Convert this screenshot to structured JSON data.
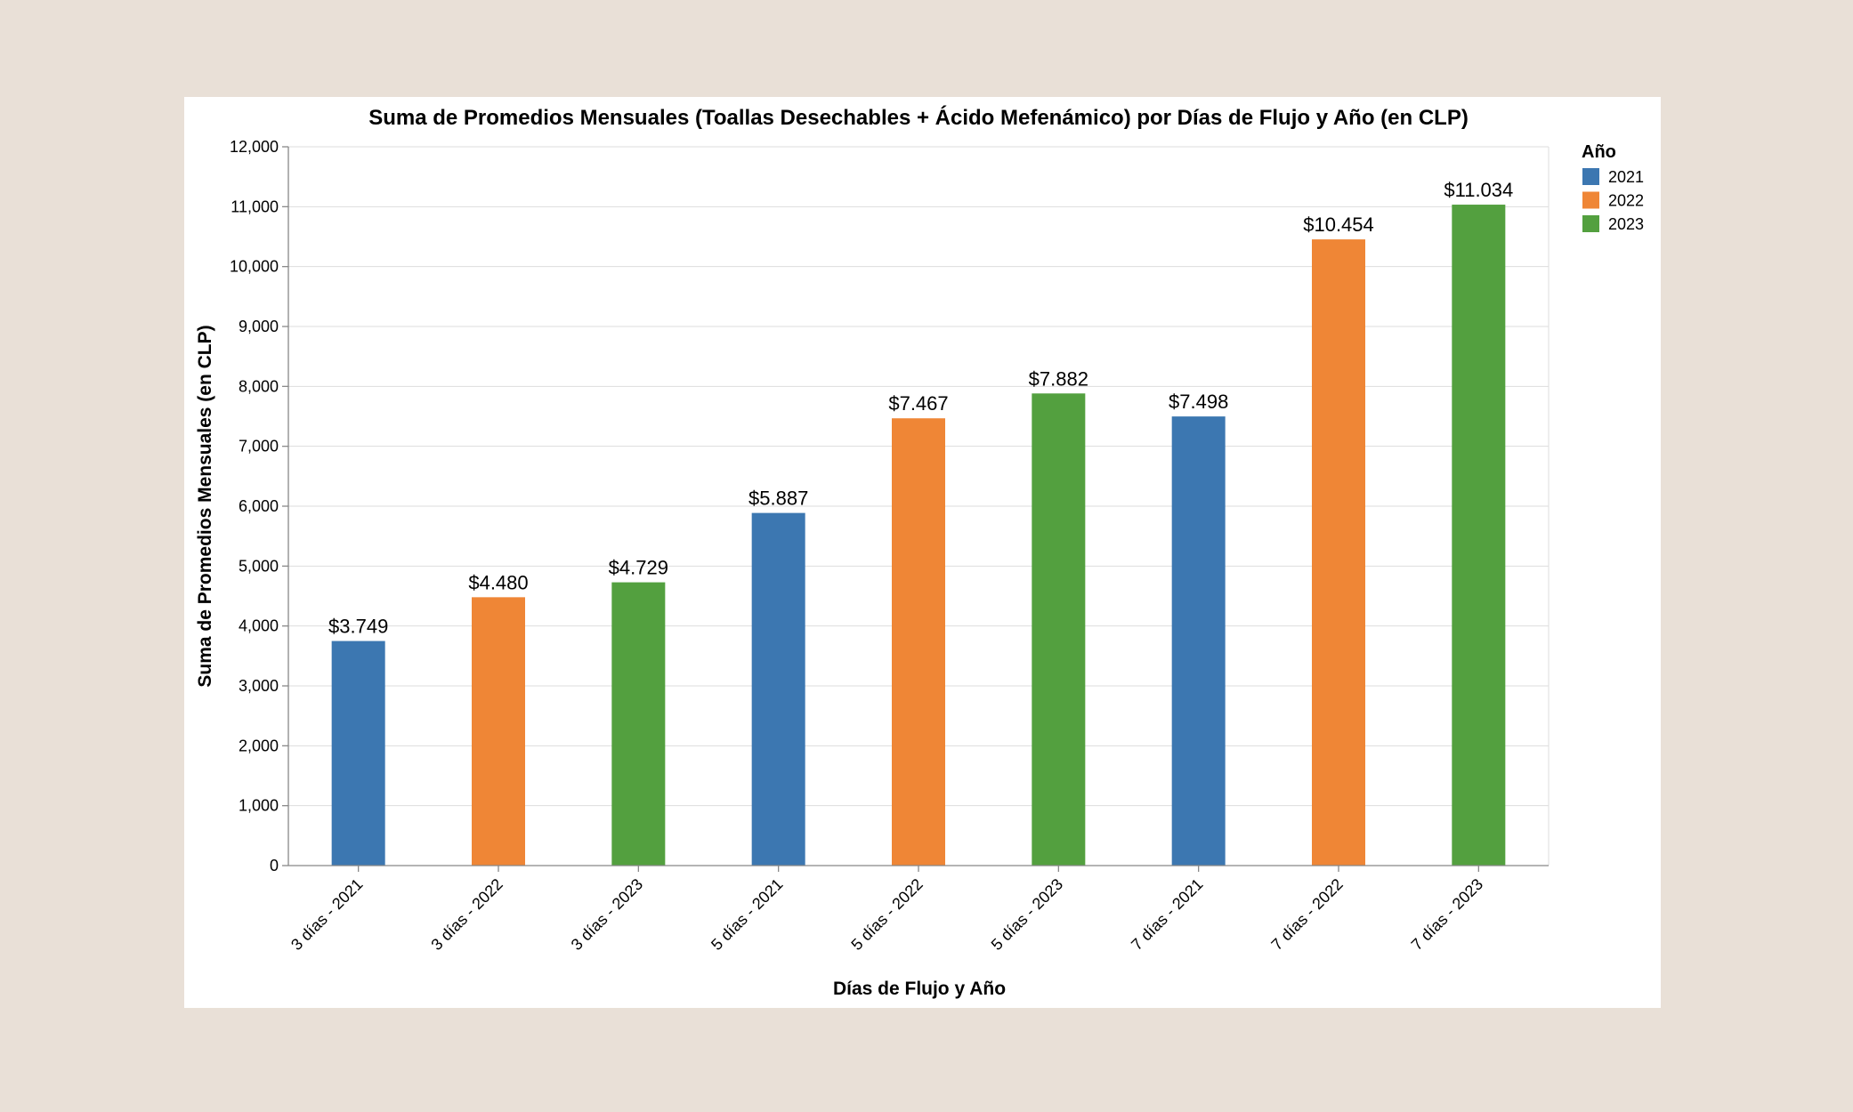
{
  "chart_data": {
    "type": "bar",
    "title": "Suma de Promedios Mensuales (Toallas Desechables + Ácido Mefenámico) por Días de Flujo y Año (en CLP)",
    "xlabel": "Días de Flujo y Año",
    "ylabel": "Suma de Promedios Mensuales (en CLP)",
    "ylim": [
      0,
      12000
    ],
    "yticks": [
      0,
      1000,
      2000,
      3000,
      4000,
      5000,
      6000,
      7000,
      8000,
      9000,
      10000,
      11000,
      12000
    ],
    "ytick_labels": [
      "0",
      "1,000",
      "2,000",
      "3,000",
      "4,000",
      "5,000",
      "6,000",
      "7,000",
      "8,000",
      "9,000",
      "10,000",
      "11,000",
      "12,000"
    ],
    "grid": true,
    "legend_position": "top-right",
    "legend_title": "Año",
    "legend": [
      {
        "name": "2021",
        "color": "#3c77b1"
      },
      {
        "name": "2022",
        "color": "#ef8636"
      },
      {
        "name": "2023",
        "color": "#53a03f"
      }
    ],
    "categories": [
      "3 días - 2021",
      "3 días - 2022",
      "3 días - 2023",
      "5 días - 2021",
      "5 días - 2022",
      "5 días - 2023",
      "7 días - 2021",
      "7 días - 2022",
      "7 días - 2023"
    ],
    "values": [
      3749,
      4480,
      4729,
      5887,
      7467,
      7882,
      7498,
      10454,
      11034
    ],
    "labels": [
      "$3.749",
      "$4.480",
      "$4.729",
      "$5.887",
      "$7.467",
      "$7.882",
      "$7.498",
      "$10.454",
      "$11.034"
    ],
    "years": [
      "2021",
      "2022",
      "2023",
      "2021",
      "2022",
      "2023",
      "2021",
      "2022",
      "2023"
    ]
  }
}
